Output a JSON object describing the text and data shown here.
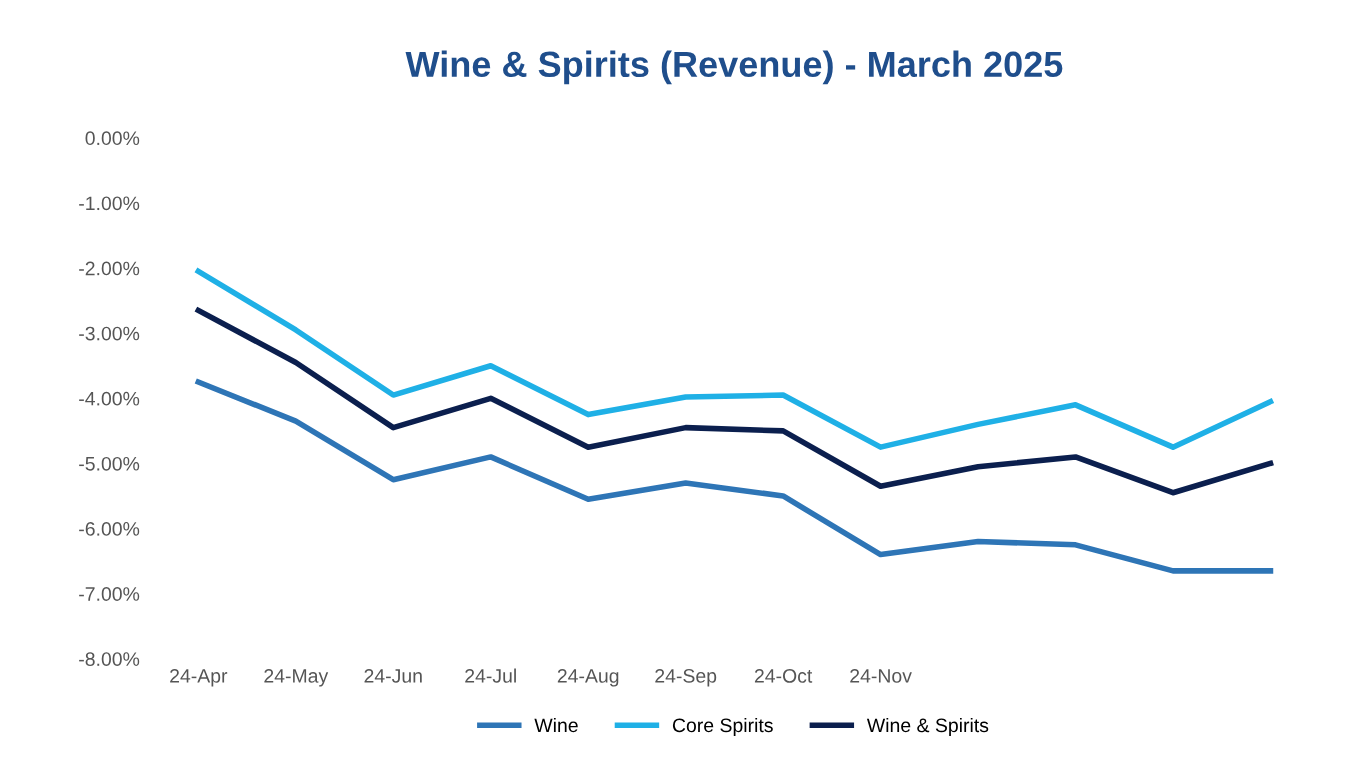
{
  "chart_data": {
    "type": "line",
    "title": "Wine & Spirits (Revenue) - March 2025",
    "categories": [
      "24-Apr",
      "24-May",
      "24-Jun",
      "24-Jul",
      "24-Aug",
      "24-Sep",
      "24-Oct",
      "24-Nov",
      null,
      null,
      null,
      null
    ],
    "series": [
      {
        "name": "Wine",
        "color": "#2e75b6",
        "values": [
          -3.75,
          -4.35,
          -5.25,
          -4.9,
          -5.55,
          -5.3,
          -5.5,
          -6.4,
          -6.2,
          -6.25,
          -6.65,
          -6.65
        ]
      },
      {
        "name": "Core Spirits",
        "color": "#1fb0e6",
        "values": [
          -2.05,
          -2.95,
          -3.95,
          -3.5,
          -4.25,
          -3.98,
          -3.95,
          -4.75,
          -4.4,
          -4.1,
          -4.75,
          -4.05
        ]
      },
      {
        "name": "Wine & Spirits",
        "color": "#0b1f4e",
        "values": [
          -2.65,
          -3.45,
          -4.45,
          -4.0,
          -4.75,
          -4.45,
          -4.5,
          -5.35,
          -5.05,
          -4.9,
          -5.45,
          -5.0
        ]
      }
    ],
    "ylim": [
      -8,
      0
    ],
    "yticks": [
      {
        "value": 0,
        "label": "0.00%"
      },
      {
        "value": -1,
        "label": "-1.00%"
      },
      {
        "value": -2,
        "label": "-2.00%"
      },
      {
        "value": -3,
        "label": "-3.00%"
      },
      {
        "value": -4,
        "label": "-4.00%"
      },
      {
        "value": -5,
        "label": "-5.00%"
      },
      {
        "value": -6,
        "label": "-6.00%"
      },
      {
        "value": -7,
        "label": "-7.00%"
      },
      {
        "value": -8,
        "label": "-8.00%"
      }
    ],
    "legend": "bottom",
    "grid": false,
    "marker": "none",
    "line_style": "solid"
  }
}
